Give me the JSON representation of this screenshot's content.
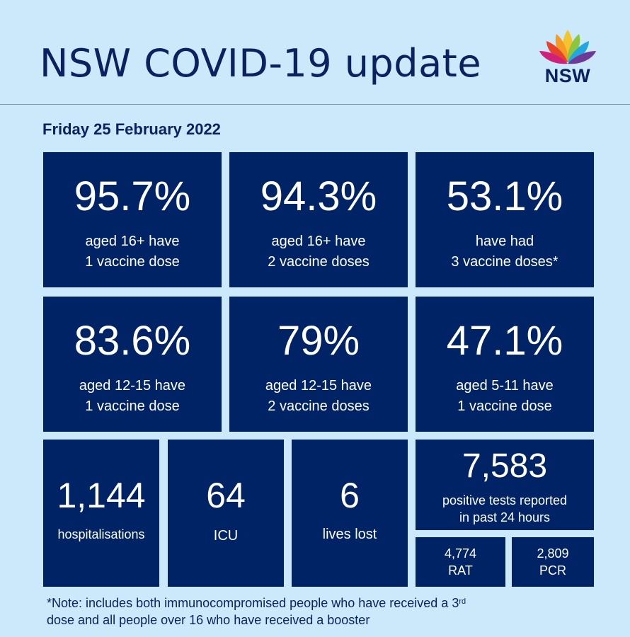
{
  "header": {
    "title": "NSW COVID-19 update",
    "logo_text": "NSW"
  },
  "date": "Friday 25 February 2022",
  "vaccination": [
    {
      "value": "95.7%",
      "line1": "aged 16+ have",
      "line2": "1 vaccine dose"
    },
    {
      "value": "94.3%",
      "line1": "aged 16+ have",
      "line2": "2 vaccine doses"
    },
    {
      "value": "53.1%",
      "line1": "have had",
      "line2": "3 vaccine doses*"
    },
    {
      "value": "83.6%",
      "line1": "aged 12-15 have",
      "line2": "1 vaccine dose"
    },
    {
      "value": "79%",
      "line1": "aged 12-15 have",
      "line2": "2 vaccine doses"
    },
    {
      "value": "47.1%",
      "line1": "aged 5-11 have",
      "line2": "1 vaccine dose"
    }
  ],
  "stats": {
    "hospitalisations": {
      "value": "1,144",
      "label": "hospitalisations"
    },
    "icu": {
      "value": "64",
      "label": "ICU"
    },
    "deaths": {
      "value": "6",
      "label": "lives lost"
    },
    "positive": {
      "value": "7,583",
      "line1": "positive tests reported",
      "line2": "in past 24 hours"
    },
    "rat": {
      "value": "4,774",
      "label": "RAT"
    },
    "pcr": {
      "value": "2,809",
      "label": "PCR"
    }
  },
  "note": {
    "text1": "*Note: includes both immunocompromised  people who have received a 3",
    "sup": "rd",
    "text2": "dose and all people over 16 who have received a booster"
  },
  "colors": {
    "background": "#cbe9fb",
    "tile": "#002366",
    "text_dark": "#0b2160"
  }
}
